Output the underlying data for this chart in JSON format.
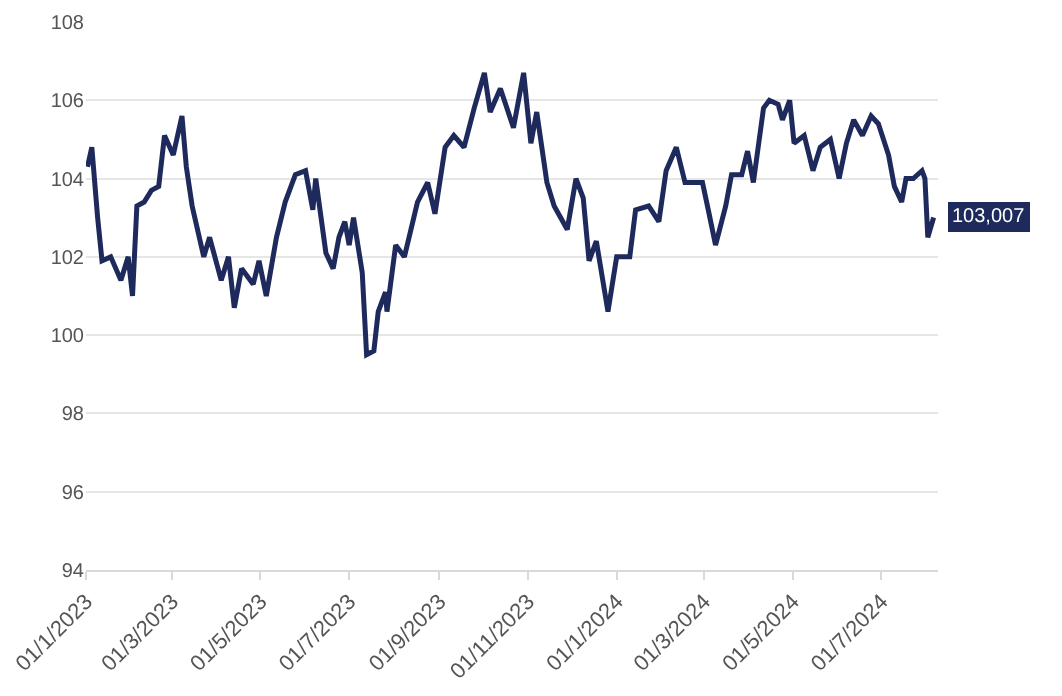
{
  "chart_data": {
    "type": "line",
    "x": [
      "2023-01-02",
      "2023-01-05",
      "2023-01-09",
      "2023-01-12",
      "2023-01-18",
      "2023-01-25",
      "2023-01-30",
      "2023-02-02",
      "2023-02-05",
      "2023-02-10",
      "2023-02-15",
      "2023-02-20",
      "2023-02-24",
      "2023-03-02",
      "2023-03-08",
      "2023-03-11",
      "2023-03-15",
      "2023-03-23",
      "2023-03-27",
      "2023-04-04",
      "2023-04-09",
      "2023-04-13",
      "2023-04-18",
      "2023-04-26",
      "2023-04-30",
      "2023-05-05",
      "2023-05-12",
      "2023-05-18",
      "2023-05-25",
      "2023-06-01",
      "2023-06-06",
      "2023-06-08",
      "2023-06-15",
      "2023-06-20",
      "2023-06-24",
      "2023-06-28",
      "2023-07-01",
      "2023-07-04",
      "2023-07-10",
      "2023-07-13",
      "2023-07-18",
      "2023-07-21",
      "2023-07-26",
      "2023-07-27",
      "2023-08-02",
      "2023-08-08",
      "2023-08-17",
      "2023-08-24",
      "2023-08-29",
      "2023-09-05",
      "2023-09-11",
      "2023-09-18",
      "2023-09-25",
      "2023-10-02",
      "2023-10-06",
      "2023-10-13",
      "2023-10-22",
      "2023-10-29",
      "2023-11-03",
      "2023-11-07",
      "2023-11-14",
      "2023-11-19",
      "2023-11-28",
      "2023-12-04",
      "2023-12-09",
      "2023-12-13",
      "2023-12-18",
      "2023-12-26",
      "2024-01-01",
      "2024-01-10",
      "2024-01-14",
      "2024-01-23",
      "2024-01-30",
      "2024-02-04",
      "2024-02-11",
      "2024-02-17",
      "2024-02-29",
      "2024-03-04",
      "2024-03-09",
      "2024-03-16",
      "2024-03-20",
      "2024-03-27",
      "2024-03-31",
      "2024-04-04",
      "2024-04-11",
      "2024-04-15",
      "2024-04-21",
      "2024-04-24",
      "2024-04-29",
      "2024-05-02",
      "2024-05-09",
      "2024-05-15",
      "2024-05-20",
      "2024-05-27",
      "2024-06-02",
      "2024-06-07",
      "2024-06-12",
      "2024-06-18",
      "2024-06-24",
      "2024-06-29",
      "2024-07-06",
      "2024-07-10",
      "2024-07-15",
      "2024-07-18",
      "2024-07-23",
      "2024-07-29",
      "2024-07-31",
      "2024-08-02",
      "2024-08-06"
    ],
    "series": [
      {
        "color": "#1f2a5c",
        "values": [
          104.3,
          104.8,
          103.0,
          101.9,
          102.0,
          101.4,
          102.0,
          101.0,
          103.3,
          103.4,
          103.7,
          103.8,
          105.1,
          104.6,
          105.6,
          104.3,
          103.3,
          102.0,
          102.5,
          101.4,
          102.0,
          100.7,
          101.7,
          101.3,
          101.9,
          101.0,
          102.5,
          103.4,
          104.1,
          104.2,
          103.2,
          104.0,
          102.1,
          101.7,
          102.5,
          102.9,
          102.3,
          103.0,
          101.6,
          99.5,
          99.6,
          100.6,
          101.1,
          100.6,
          102.3,
          102.0,
          103.4,
          103.9,
          103.1,
          104.8,
          105.1,
          104.8,
          105.8,
          106.7,
          105.7,
          106.3,
          105.3,
          106.7,
          104.9,
          105.7,
          103.9,
          103.3,
          102.7,
          104.0,
          103.5,
          101.9,
          102.4,
          100.6,
          102.0,
          102.0,
          103.2,
          103.3,
          102.9,
          104.2,
          104.8,
          103.9,
          103.9,
          103.2,
          102.3,
          103.3,
          104.1,
          104.1,
          104.7,
          103.9,
          105.8,
          106.0,
          105.9,
          105.5,
          106.0,
          104.9,
          105.1,
          104.2,
          104.8,
          105.0,
          104.0,
          104.9,
          105.5,
          105.1,
          105.6,
          105.4,
          104.6,
          103.8,
          103.4,
          104.0,
          104.0,
          104.2,
          104.0,
          102.5,
          103.007
        ]
      }
    ],
    "xlim": [
      "2023-01-01",
      "2024-08-09"
    ],
    "xticks": [
      {
        "value": "2023-01-01",
        "label": "01/1/2023"
      },
      {
        "value": "2023-03-01",
        "label": "01/3/2023"
      },
      {
        "value": "2023-05-01",
        "label": "01/5/2023"
      },
      {
        "value": "2023-07-01",
        "label": "01/7/2023"
      },
      {
        "value": "2023-09-01",
        "label": "01/9/2023"
      },
      {
        "value": "2023-11-01",
        "label": "01/11/2023"
      },
      {
        "value": "2024-01-01",
        "label": "01/1/2024"
      },
      {
        "value": "2024-03-01",
        "label": "01/3/2024"
      },
      {
        "value": "2024-05-01",
        "label": "01/5/2024"
      },
      {
        "value": "2024-07-01",
        "label": "01/7/2024"
      }
    ],
    "ylim": [
      94,
      108
    ],
    "yticks": [
      94,
      96,
      98,
      100,
      102,
      104,
      106,
      108
    ],
    "grid": "y",
    "marker": "none",
    "line_style": "solid",
    "annotations": [
      {
        "text": "103,007",
        "x": "2024-08-06",
        "y": 103.007
      }
    ]
  }
}
